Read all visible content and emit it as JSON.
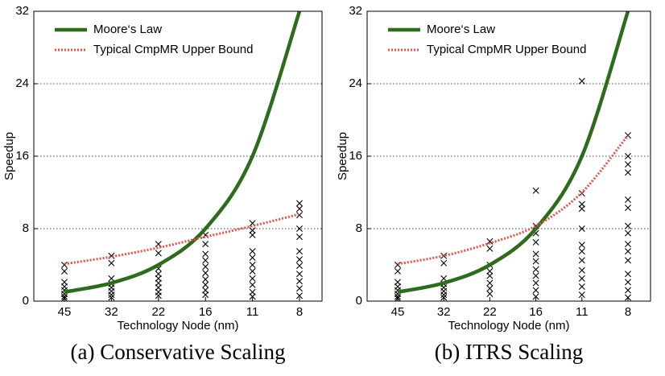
{
  "chart_data": [
    {
      "type": "scatter-line",
      "title": "(a) Conservative Scaling",
      "x_label": "Technology Node (nm)",
      "y_label": "Speedup",
      "categories": [
        "45",
        "32",
        "22",
        "16",
        "11",
        "8"
      ],
      "ylim": [
        0,
        32
      ],
      "yticks": [
        0,
        8,
        16,
        24,
        32
      ],
      "grid": true,
      "legend": "upper left",
      "series": [
        {
          "name": "Moore‘s Law",
          "color": "#2e6b1c",
          "style": "solid",
          "values": [
            1,
            2,
            4,
            8,
            16,
            32
          ]
        },
        {
          "name": "Typical CmpMR Upper Bound",
          "color": "#e8504a",
          "style": "dotted",
          "values": [
            4.1,
            4.9,
            5.9,
            7.1,
            8.3,
            9.6
          ]
        }
      ],
      "markers": {
        "color": "#000",
        "values": [
          [
            4.0,
            3.3,
            2.1,
            1.6,
            1.2,
            0.8,
            0.5,
            0.3
          ],
          [
            5.0,
            4.2,
            2.5,
            1.9,
            1.5,
            1.1,
            0.7,
            0.4
          ],
          [
            6.3,
            5.3,
            3.6,
            3.0,
            2.5,
            2.0,
            1.5,
            1.0,
            0.6
          ],
          [
            7.3,
            6.3,
            5.2,
            4.5,
            3.8,
            3.1,
            2.4,
            1.8,
            1.2,
            0.7
          ],
          [
            8.6,
            7.8,
            7.3,
            5.5,
            4.8,
            4.0,
            3.3,
            2.5,
            1.8,
            1.0,
            0.5
          ],
          [
            10.8,
            10.2,
            9.5,
            8.0,
            7.1,
            5.5,
            4.6,
            3.9,
            3.0,
            2.2,
            1.4,
            0.6
          ]
        ]
      }
    },
    {
      "type": "scatter-line",
      "title": "(b) ITRS Scaling",
      "x_label": "Technology Node (nm)",
      "y_label": "Speedup",
      "categories": [
        "45",
        "32",
        "22",
        "16",
        "11",
        "8"
      ],
      "ylim": [
        0,
        32
      ],
      "yticks": [
        0,
        8,
        16,
        24,
        32
      ],
      "grid": true,
      "legend": "upper left",
      "series": [
        {
          "name": "Moore‘s Law",
          "color": "#2e6b1c",
          "style": "solid",
          "values": [
            1,
            2,
            4,
            8,
            16,
            32
          ]
        },
        {
          "name": "Typical CmpMR Upper Bound",
          "color": "#e8504a",
          "style": "dotted",
          "values": [
            4.1,
            5.0,
            6.4,
            8.3,
            12.0,
            18.3
          ]
        }
      ],
      "markers": {
        "color": "#000",
        "values": [
          [
            4.0,
            3.3,
            2.1,
            1.6,
            1.2,
            0.8,
            0.5,
            0.3
          ],
          [
            5.0,
            4.2,
            2.5,
            1.9,
            1.5,
            1.1,
            0.7,
            0.4
          ],
          [
            6.6,
            5.8,
            4.0,
            3.3,
            2.8,
            2.0,
            1.4,
            0.8
          ],
          [
            12.2,
            8.3,
            7.5,
            6.5,
            5.2,
            4.4,
            3.5,
            2.8,
            2.0,
            1.2,
            0.5
          ],
          [
            24.3,
            11.9,
            10.7,
            10.2,
            8.0,
            6.2,
            5.5,
            4.5,
            3.4,
            2.5,
            1.6,
            0.7
          ],
          [
            18.3,
            16.0,
            15.1,
            14.2,
            11.2,
            10.3,
            8.3,
            7.5,
            6.3,
            5.5,
            4.5,
            3.0,
            2.1,
            1.2,
            0.4
          ]
        ]
      }
    }
  ]
}
